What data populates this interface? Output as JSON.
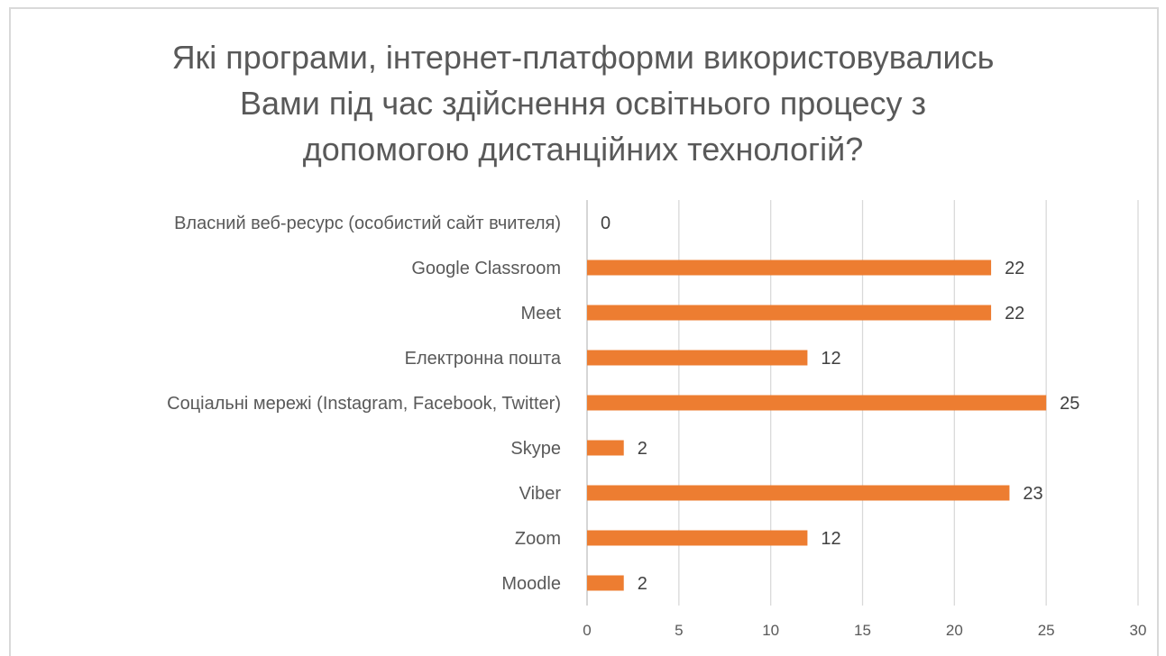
{
  "chart_data": {
    "type": "bar",
    "orientation": "horizontal",
    "title": "Які програми, інтернет-платформи використовувались\nВами  під час здійснення освітнього процесу з\nдопомогою дистанційних технологій?",
    "categories": [
      "Власний веб-ресурс (особистий сайт вчителя)",
      "Google Classroom",
      "Meet",
      "Електронна пошта",
      "Соціальні мережі (Instagram, Facebook, Twitter)",
      "Skype",
      "Viber",
      "Zoom",
      "Moodle"
    ],
    "values": [
      0,
      22,
      22,
      12,
      25,
      2,
      23,
      12,
      2
    ],
    "xlim": [
      0,
      30
    ],
    "x_ticks": [
      "0",
      "5",
      "10",
      "15",
      "20",
      "25",
      "30"
    ],
    "grid": "vertical",
    "data_labels": true,
    "bar_color": "#ED7D31",
    "grid_color": "#d9d9d9"
  }
}
